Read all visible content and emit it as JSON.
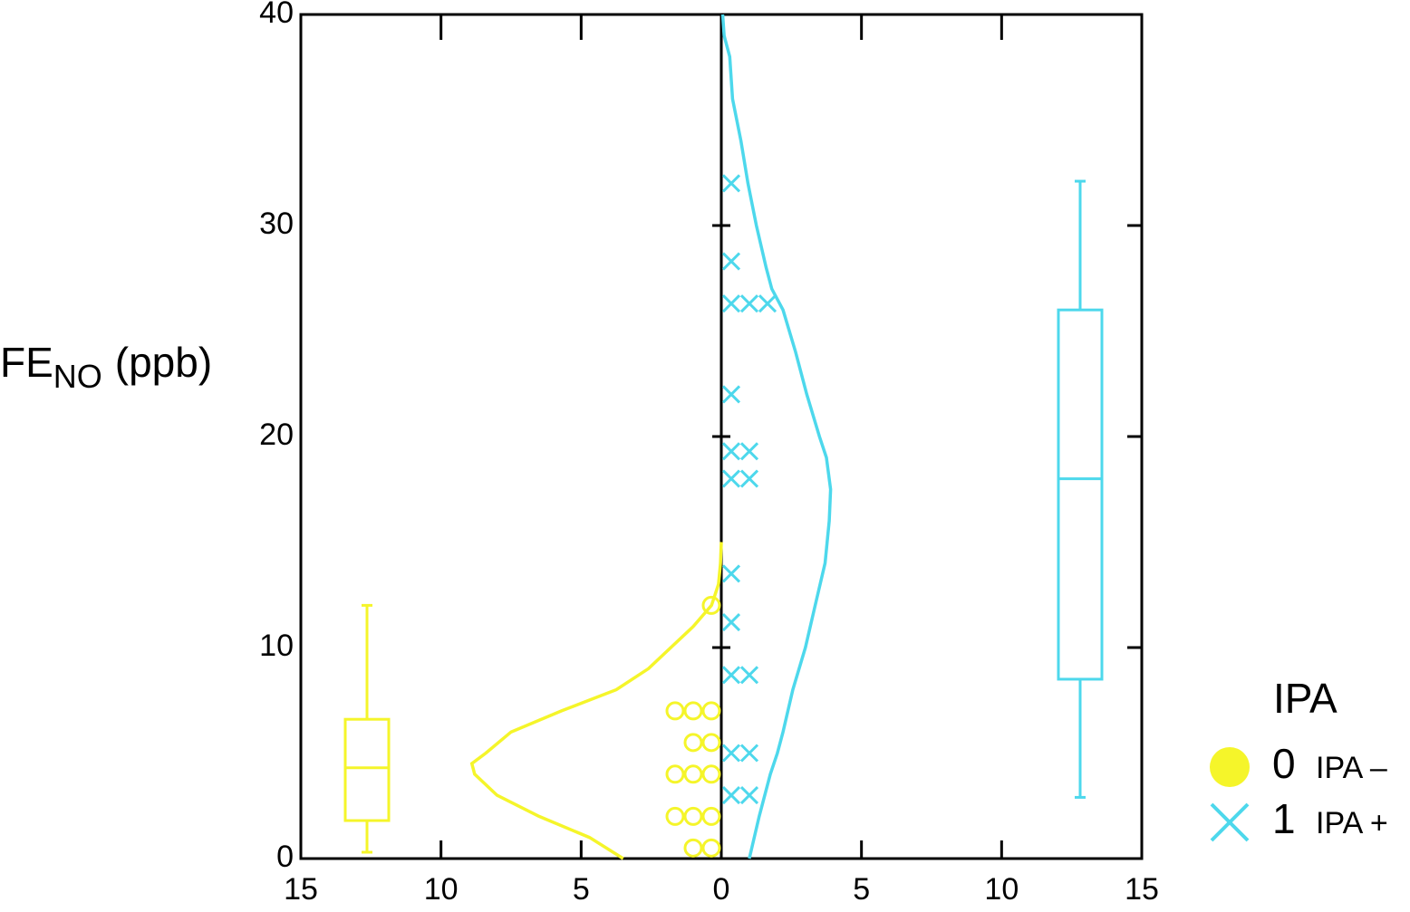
{
  "chart_data": {
    "type": "mirrored-density",
    "y_label": [
      "FE",
      "NO",
      "(ppb)"
    ],
    "legend_title": "IPA",
    "xlim": [
      -15,
      15
    ],
    "xticks": [
      {
        "value": -15,
        "label": "15"
      },
      {
        "value": -10,
        "label": "10"
      },
      {
        "value": -5,
        "label": "5"
      },
      0,
      5,
      10,
      15
    ],
    "ylim": [
      0,
      40
    ],
    "yticks": [
      0,
      10,
      20,
      30,
      40
    ],
    "series": [
      {
        "name": "0",
        "label": "IPA –",
        "color": "#f5f52a",
        "marker": "circle",
        "side": "left",
        "points": [
          12,
          7,
          7,
          7,
          5.5,
          5.5,
          4,
          4,
          4,
          2,
          2,
          2,
          0.5,
          0.5
        ],
        "density": {
          "y": [
            0,
            1,
            2,
            3,
            4,
            4.5,
            5,
            6,
            7,
            8,
            9,
            10,
            11,
            12,
            13,
            14,
            15
          ],
          "count": [
            3.5,
            4.7,
            6.5,
            8,
            8.8,
            8.9,
            8.4,
            7.5,
            5.7,
            3.75,
            2.6,
            1.8,
            1.0,
            0.35,
            0.1,
            0.03,
            0
          ]
        },
        "box": {
          "whislo": 0.3,
          "q1": 1.8,
          "med": 4.3,
          "q3": 6.6,
          "whishi": 12
        }
      },
      {
        "name": "1",
        "label": "IPA +",
        "color": "#4dd8ec",
        "marker": "cross",
        "side": "right",
        "points": [
          32,
          28.3,
          26.3,
          26.3,
          26.3,
          22,
          19.3,
          19.3,
          18,
          18,
          13.5,
          11.2,
          8.7,
          8.7,
          5,
          5,
          3,
          3
        ],
        "density": {
          "y": [
            0,
            2,
            4,
            5,
            6,
            8,
            10,
            12,
            14,
            16,
            17.5,
            19,
            20,
            22,
            24,
            26,
            27,
            28,
            30,
            32,
            34,
            36,
            38,
            39,
            40
          ],
          "count": [
            1.0,
            1.35,
            1.75,
            2.0,
            2.2,
            2.55,
            3.0,
            3.35,
            3.7,
            3.85,
            3.9,
            3.75,
            3.5,
            3.05,
            2.65,
            2.2,
            1.8,
            1.6,
            1.25,
            0.95,
            0.7,
            0.4,
            0.3,
            0.1,
            0.05
          ]
        },
        "box": {
          "whislo": 2.9,
          "q1": 8.5,
          "med": 18,
          "q3": 26,
          "whishi": 32.1
        }
      }
    ]
  }
}
